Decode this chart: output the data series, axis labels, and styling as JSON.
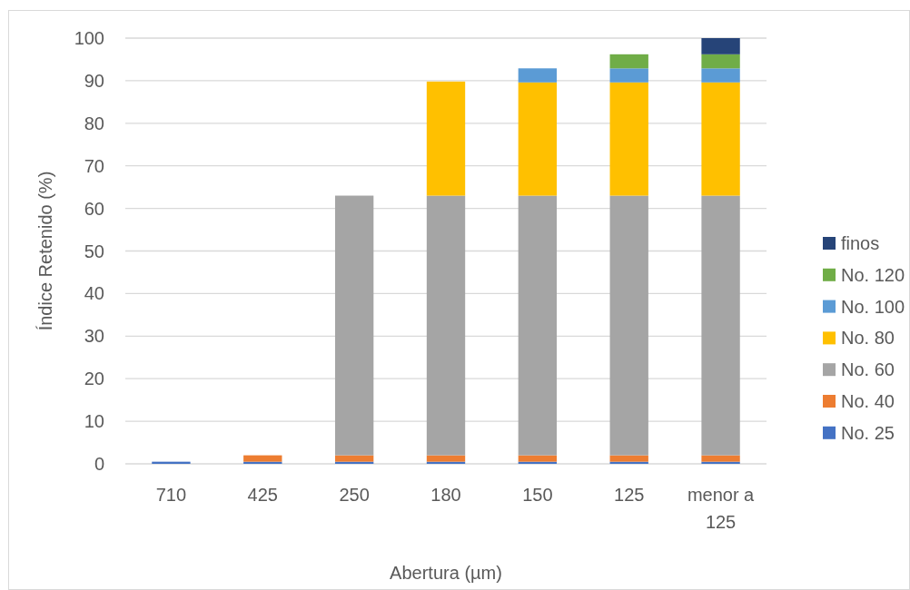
{
  "chart_data": {
    "type": "bar",
    "stacked": true,
    "xlabel": "Abertura (µm)",
    "ylabel": "Índice Retenido (%)",
    "categories": [
      "710",
      "425",
      "250",
      "180",
      "150",
      "125",
      "menor a 125"
    ],
    "series": [
      {
        "name": "No. 25",
        "color": "#4472c4",
        "values": [
          0.5,
          0.5,
          0.5,
          0.5,
          0.5,
          0.5,
          0.5
        ]
      },
      {
        "name": "No. 40",
        "color": "#ed7d31",
        "values": [
          null,
          1.5,
          1.5,
          1.5,
          1.5,
          1.5,
          1.5
        ]
      },
      {
        "name": "No. 60",
        "color": "#a5a5a5",
        "values": [
          null,
          null,
          61,
          61,
          61,
          61,
          61
        ]
      },
      {
        "name": "No. 80",
        "color": "#ffc000",
        "values": [
          null,
          null,
          null,
          26.8,
          26.6,
          26.6,
          26.6
        ]
      },
      {
        "name": "No. 100",
        "color": "#5b9bd5",
        "values": [
          null,
          null,
          null,
          null,
          3.3,
          3.3,
          3.3
        ]
      },
      {
        "name": "No. 120",
        "color": "#70ad47",
        "values": [
          null,
          null,
          null,
          null,
          null,
          3.3,
          3.3
        ]
      },
      {
        "name": "finos",
        "color": "#264478",
        "values": [
          null,
          null,
          null,
          null,
          null,
          null,
          3.8
        ]
      }
    ],
    "ylim": [
      0,
      100
    ],
    "yticks": [
      0,
      10,
      20,
      30,
      40,
      50,
      60,
      70,
      80,
      90,
      100
    ],
    "grid": "y",
    "legend": "right"
  }
}
